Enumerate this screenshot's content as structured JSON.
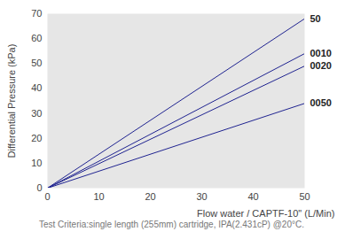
{
  "chart_data": {
    "type": "line",
    "x": [
      0,
      50
    ],
    "series": [
      {
        "name": "50",
        "color": "#1f2390",
        "values": [
          0,
          68
        ]
      },
      {
        "name": "0010",
        "color": "#1f2390",
        "values": [
          0,
          54
        ]
      },
      {
        "name": "0020",
        "color": "#1f2390",
        "values": [
          0,
          49
        ]
      },
      {
        "name": "0050",
        "color": "#1f2390",
        "values": [
          0,
          34
        ]
      }
    ],
    "x_label": "Flow water / CAPTF-10\" (L/Min)",
    "y_label": "Differential Pressure (kPa)",
    "caption": "Test Criteria:single length (255mm) cartridge, IPA(2.431cP) @20°C.",
    "xlim": [
      0,
      50
    ],
    "ylim": [
      0,
      70
    ],
    "xticks": [
      0,
      10,
      20,
      30,
      40,
      50
    ],
    "yticks": [
      0,
      10,
      20,
      30,
      40,
      50,
      60,
      70
    ],
    "grid": false
  }
}
